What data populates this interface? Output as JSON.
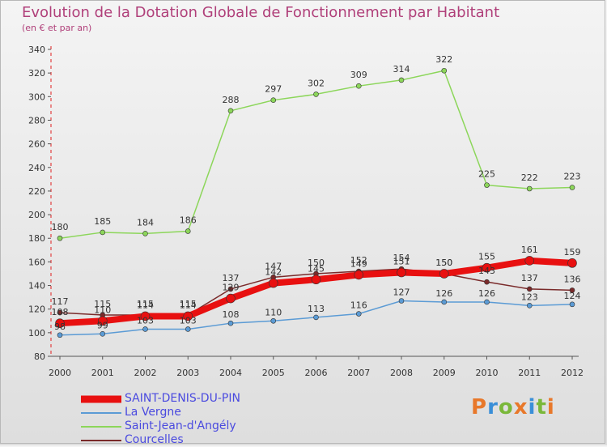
{
  "header": {
    "title": "Evolution de la Dotation Globale de Fonctionnement par Habitant",
    "subtitle": "(en € et par an)"
  },
  "logo": {
    "letters": [
      "P",
      "r",
      "o",
      "x",
      "i",
      "t",
      "i"
    ]
  },
  "chart_data": {
    "type": "line",
    "x": [
      "2000",
      "2001",
      "2002",
      "2003",
      "2004",
      "2005",
      "2006",
      "2007",
      "2008",
      "2009",
      "2010",
      "2011",
      "2012"
    ],
    "ylim": [
      80,
      340
    ],
    "yticks": [
      80,
      100,
      120,
      140,
      160,
      180,
      200,
      220,
      240,
      260,
      280,
      300,
      320,
      340
    ],
    "grid": false,
    "legend_position": "bottom-left",
    "series": [
      {
        "name": "SAINT-DENIS-DU-PIN",
        "color": "#e81010",
        "values": [
          108,
          110,
          114,
          114,
          129,
          142,
          145,
          149,
          151,
          150,
          155,
          161,
          159
        ]
      },
      {
        "name": "La Vergne",
        "color": "#5b9bd5",
        "values": [
          98,
          99,
          103,
          103,
          108,
          110,
          113,
          116,
          127,
          126,
          126,
          123,
          124
        ]
      },
      {
        "name": "Saint-Jean-d'Angély",
        "color": "#8cd65a",
        "values": [
          180,
          185,
          184,
          186,
          288,
          297,
          302,
          309,
          314,
          322,
          225,
          222,
          223
        ]
      },
      {
        "name": "Courcelles",
        "color": "#7a2a2a",
        "values": [
          117,
          115,
          115,
          115,
          137,
          147,
          150,
          152,
          154,
          150,
          143,
          137,
          136
        ]
      }
    ]
  }
}
